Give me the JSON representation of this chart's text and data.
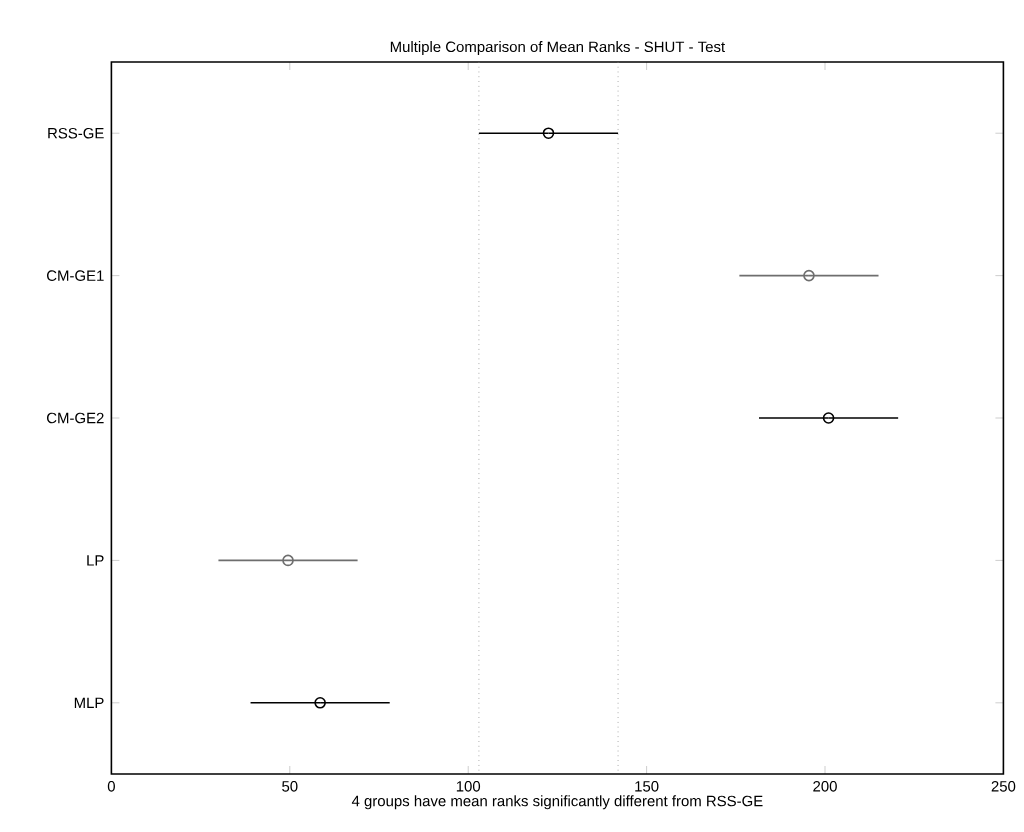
{
  "chart_data": {
    "type": "scatter",
    "orientation": "horizontal",
    "title": "Multiple Comparison of Mean Ranks - SHUT - Test",
    "xlabel": "4 groups have mean ranks significantly different from RSS-GE",
    "categories": [
      "RSS-GE",
      "CM-GE1",
      "CM-GE2",
      "LP",
      "MLP"
    ],
    "values": [
      122.5,
      195.5,
      201,
      49.5,
      58.5
    ],
    "errors": [
      19.5,
      19.5,
      19.5,
      19.5,
      19.5
    ],
    "colors": [
      "#000000",
      "#6e6e6e",
      "#000000",
      "#6e6e6e",
      "#000000"
    ],
    "marker": "circle",
    "xlim": [
      0,
      250
    ],
    "xticks": [
      0,
      50,
      100,
      150,
      200,
      250
    ],
    "ref_lines": [
      {
        "axis": "x",
        "value": 103,
        "color": "#808080",
        "line_style": "dotted"
      },
      {
        "axis": "x",
        "value": 142,
        "color": "#808080",
        "line_style": "dotted"
      }
    ]
  }
}
